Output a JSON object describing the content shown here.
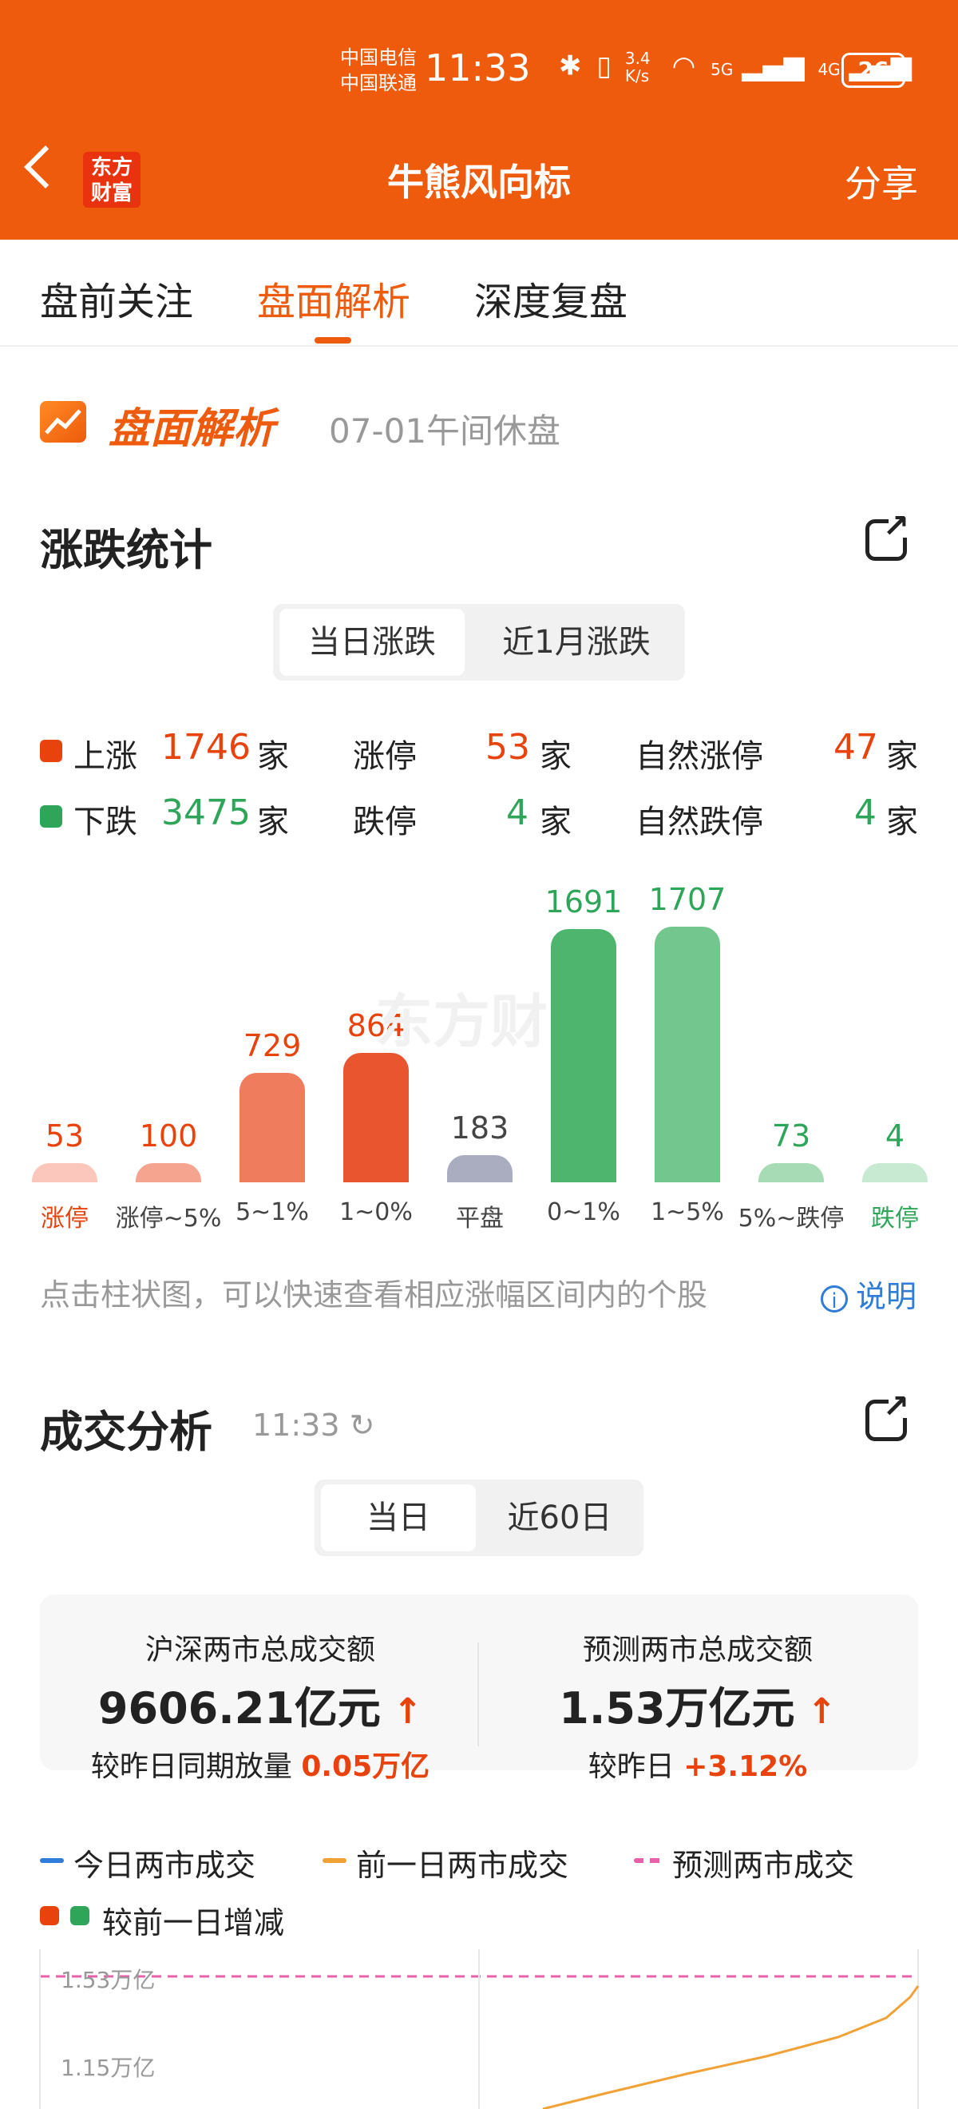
{
  "status_bar": {
    "carrier1": "中国电信",
    "carrier2": "中国联通",
    "time": "11:33",
    "net_speed": "3.4 K/s",
    "net1": "5G",
    "net2": "4G",
    "battery": "26"
  },
  "header": {
    "logo": "东方财富",
    "title": "牛熊风向标",
    "share": "分享"
  },
  "tabs": [
    "盘前关注",
    "盘面解析",
    "深度复盘"
  ],
  "section": {
    "brand": "盘面解析",
    "date": "07-01午间休盘"
  },
  "rise_fall": {
    "title": "涨跌统计",
    "segments": [
      "当日涨跌",
      "近1月涨跌"
    ],
    "rows": [
      {
        "label": "上涨",
        "value": "1746",
        "unit": "家",
        "l2": "涨停",
        "v2": "53",
        "l3": "自然涨停",
        "v3": "47"
      },
      {
        "label": "下跌",
        "value": "3475",
        "unit": "家",
        "l2": "跌停",
        "v2": "4",
        "l3": "自然跌停",
        "v3": "4"
      }
    ],
    "watermark": "东方财",
    "hint": "点击柱状图，可以快速查看相应涨幅区间内的个股",
    "explain": "说明"
  },
  "chart_data": {
    "type": "bar",
    "categories": [
      "涨停",
      "涨停~5%",
      "5~1%",
      "1~0%",
      "平盘",
      "0~1%",
      "1~5%",
      "5%~跌停",
      "跌停"
    ],
    "values": [
      53,
      100,
      729,
      864,
      183,
      1691,
      1707,
      73,
      4
    ],
    "colors": [
      "#fbc6bb",
      "#f5a58f",
      "#ef7c5c",
      "#e8552f",
      "#a9adbf",
      "#4db56e",
      "#73c68d",
      "#a6dbb5",
      "#c9ead2"
    ],
    "category_colors": [
      "#e8420d",
      "#444444",
      "#444444",
      "#444444",
      "#444444",
      "#444444",
      "#444444",
      "#444444",
      "#2fa55a"
    ],
    "value_colors": [
      "#e8420d",
      "#e8420d",
      "#e8420d",
      "#e8420d",
      "#444444",
      "#2fa55a",
      "#2fa55a",
      "#2fa55a",
      "#2fa55a"
    ]
  },
  "volume": {
    "title": "成交分析",
    "time": "11:33",
    "segments": [
      "当日",
      "近60日"
    ],
    "left": {
      "title": "沪深两市总成交额",
      "value": "9606.21亿元",
      "sub_label": "较昨日同期放量",
      "sub_value": "0.05万亿"
    },
    "right": {
      "title": "预测两市总成交额",
      "value": "1.53万亿元",
      "sub_label": "较昨日",
      "sub_value": "+3.12%"
    },
    "legend": [
      "今日两市成交",
      "前一日两市成交",
      "预测两市成交",
      "较前一日增减"
    ],
    "legend_colors": [
      "#2f7dd8",
      "#f0a236",
      "#e860a8"
    ],
    "yticks": [
      "1.53万亿",
      "1.15万亿"
    ]
  }
}
